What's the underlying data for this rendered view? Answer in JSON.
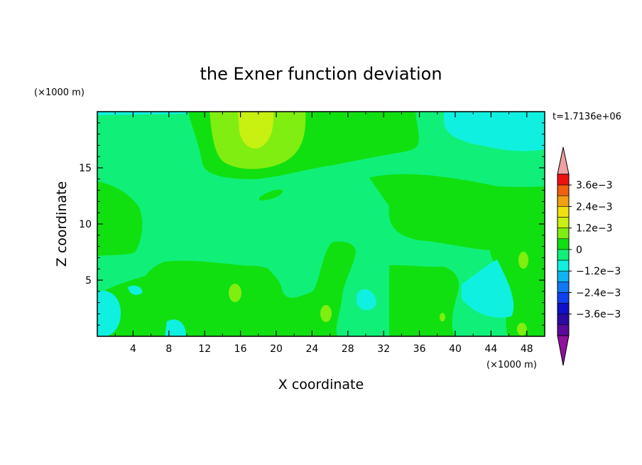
{
  "chart_data": {
    "type": "heatmap",
    "title": "the Exner function deviation",
    "xlabel": "X coordinate",
    "ylabel": "Z coordinate",
    "x_unit": "(×1000 m)",
    "y_unit": "(×1000 m)",
    "time_label": "t=1.7136e+06",
    "xlim": [
      0,
      50
    ],
    "ylim": [
      0,
      20
    ],
    "x_ticks": [
      4,
      8,
      12,
      16,
      20,
      24,
      28,
      32,
      36,
      40,
      44,
      48
    ],
    "y_ticks": [
      5,
      10,
      15
    ],
    "x_tick_labels": [
      "4",
      "8",
      "12",
      "16",
      "20",
      "24",
      "28",
      "32",
      "36",
      "40",
      "44",
      "48"
    ],
    "y_tick_labels": [
      "5",
      "10",
      "15"
    ],
    "colorbar": {
      "levels": [
        -0.0042,
        -0.0036,
        -0.003,
        -0.0024,
        -0.0018,
        -0.0012,
        -0.0006,
        0,
        0.0006,
        0.0012,
        0.0018,
        0.0024,
        0.003,
        0.0036,
        0.0042
      ],
      "colors": [
        "#5a0a9a",
        "#2a0aa0",
        "#1010c8",
        "#1040f0",
        "#1078f0",
        "#10b4f0",
        "#10f0e0",
        "#10f078",
        "#10e010",
        "#80ee10",
        "#c8f010",
        "#f0e010",
        "#f0a010",
        "#f06010",
        "#f01010"
      ],
      "under_color": "#9010a0",
      "over_color": "#f0a0a0",
      "tick_labels": [
        "3.6e−3",
        "2.4e−3",
        "1.2e−3",
        "0",
        "−1.2e−3",
        "−2.4e−3",
        "−3.6e−3"
      ]
    },
    "regions": {
      "background_level": "0 to 6e-4 (#10f078)",
      "zones": [
        {
          "level": "0 to -6e-4",
          "color": "#10f0e0",
          "description": "top-right and bottom-left cyan"
        },
        {
          "level": "6e-4 to 1.2e-3",
          "color": "#10e010",
          "description": "green mid regions"
        },
        {
          "level": "1.2e-3 to 1.8e-3",
          "color": "#80ee10",
          "description": "upper center lobe"
        },
        {
          "level": "1.8e-3 to 2.4e-3",
          "color": "#c8f010",
          "description": "top core near x=18"
        }
      ]
    }
  }
}
